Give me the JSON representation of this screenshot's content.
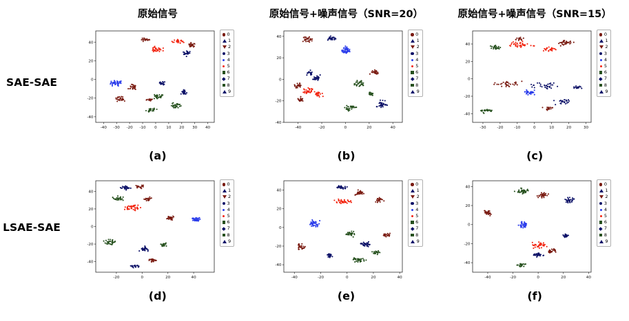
{
  "figure": {
    "col_titles": [
      "原始信号",
      "原始信号+噪声信号（SNR=20）",
      "原始信号+噪声信号（SNR=15）"
    ],
    "row_labels": [
      "SAE-SAE",
      "LSAE-SAE"
    ]
  },
  "palette": [
    "#7a1c12",
    "#0d1268",
    "#2b3deb",
    "#f2230e",
    "#27511f"
  ],
  "legend": {
    "labels": [
      "0",
      "1",
      "2",
      "3",
      "4",
      "5",
      "6",
      "7",
      "8",
      "9"
    ],
    "color_idx": [
      0,
      1,
      0,
      1,
      2,
      3,
      4,
      1,
      4,
      1
    ],
    "markers": [
      "circle",
      "triangle-up",
      "triangle-down",
      "circle",
      "dot",
      "dot",
      "square",
      "diamond",
      "square",
      "triangle-up"
    ]
  },
  "chart_data": [
    {
      "type": "scatter",
      "sublabel": "(a)",
      "xlim": [
        -46,
        45
      ],
      "ylim": [
        -46,
        52
      ],
      "xticks": [
        -40,
        -30,
        -20,
        -10,
        0,
        10,
        20,
        30,
        40
      ],
      "yticks": [
        -40,
        -20,
        0,
        20,
        40
      ],
      "clusters": [
        [
          3,
          1,
          32,
          7,
          4,
          28
        ],
        [
          3,
          17,
          41,
          7,
          3,
          26
        ],
        [
          0,
          -8,
          43,
          5,
          3,
          20
        ],
        [
          0,
          28,
          37,
          5,
          4,
          26
        ],
        [
          1,
          24,
          28,
          4,
          4,
          26
        ],
        [
          2,
          -30,
          -4,
          6,
          4,
          40
        ],
        [
          0,
          -17,
          -9,
          5,
          4,
          28
        ],
        [
          0,
          -27,
          -21,
          5,
          4,
          26
        ],
        [
          1,
          5,
          -4,
          4,
          3,
          18
        ],
        [
          4,
          3,
          -18,
          7,
          4,
          30
        ],
        [
          4,
          15,
          -28,
          6,
          4,
          30
        ],
        [
          4,
          -4,
          -33,
          6,
          3,
          26
        ],
        [
          1,
          22,
          -14,
          4,
          4,
          26
        ],
        [
          0,
          -5,
          -22,
          4,
          3,
          18
        ]
      ]
    },
    {
      "type": "scatter",
      "sublabel": "(b)",
      "xlim": [
        -52,
        48
      ],
      "ylim": [
        -40,
        45
      ],
      "xticks": [
        -40,
        -20,
        0,
        20,
        40
      ],
      "yticks": [
        -40,
        -20,
        0,
        20,
        40
      ],
      "clusters": [
        [
          2,
          0,
          27,
          5,
          5,
          45
        ],
        [
          0,
          -32,
          37,
          6,
          4,
          28
        ],
        [
          1,
          -12,
          38,
          6,
          3,
          28
        ],
        [
          1,
          -25,
          1,
          5,
          4,
          26
        ],
        [
          3,
          -31,
          -11,
          6,
          5,
          32
        ],
        [
          0,
          -40,
          -6,
          5,
          4,
          24
        ],
        [
          0,
          -38,
          -19,
          4,
          4,
          20
        ],
        [
          3,
          -22,
          -14,
          5,
          4,
          22
        ],
        [
          4,
          12,
          -4,
          6,
          5,
          32
        ],
        [
          0,
          25,
          7,
          5,
          4,
          26
        ],
        [
          4,
          22,
          -13,
          4,
          3,
          20
        ],
        [
          1,
          31,
          -23,
          6,
          5,
          34
        ],
        [
          4,
          4,
          -27,
          7,
          4,
          30
        ],
        [
          1,
          -30,
          6,
          4,
          3,
          18
        ]
      ]
    },
    {
      "type": "scatter",
      "sublabel": "(c)",
      "xlim": [
        -36,
        33
      ],
      "ylim": [
        -50,
        55
      ],
      "xticks": [
        -30,
        -20,
        -10,
        0,
        10,
        20,
        30
      ],
      "yticks": [
        -40,
        -20,
        0,
        20,
        40
      ],
      "clusters": [
        [
          3,
          -8,
          39,
          10,
          5,
          40
        ],
        [
          3,
          8,
          34,
          6,
          4,
          22
        ],
        [
          0,
          18,
          41,
          7,
          4,
          30
        ],
        [
          4,
          -23,
          36,
          5,
          4,
          26
        ],
        [
          0,
          -9,
          46,
          4,
          3,
          16
        ],
        [
          0,
          -16,
          -6,
          12,
          5,
          30
        ],
        [
          1,
          6,
          -8,
          12,
          5,
          30
        ],
        [
          2,
          -3,
          -16,
          5,
          4,
          30
        ],
        [
          1,
          16,
          -26,
          7,
          4,
          24
        ],
        [
          0,
          7,
          -34,
          5,
          3,
          18
        ],
        [
          4,
          -28,
          -37,
          5,
          4,
          26
        ],
        [
          1,
          25,
          -10,
          4,
          3,
          16
        ]
      ]
    },
    {
      "type": "scatter",
      "sublabel": "(d)",
      "xlim": [
        -36,
        56
      ],
      "ylim": [
        -52,
        52
      ],
      "xticks": [
        -20,
        0,
        20,
        40
      ],
      "yticks": [
        -40,
        -20,
        0,
        20,
        40
      ],
      "clusters": [
        [
          1,
          -13,
          44,
          6,
          3,
          30
        ],
        [
          0,
          -2,
          45,
          5,
          3,
          22
        ],
        [
          4,
          -18,
          32,
          6,
          4,
          30
        ],
        [
          0,
          4,
          31,
          4,
          3,
          20
        ],
        [
          3,
          -8,
          21,
          9,
          5,
          36
        ],
        [
          2,
          42,
          8,
          5,
          4,
          34
        ],
        [
          0,
          22,
          10,
          5,
          4,
          28
        ],
        [
          4,
          -25,
          -18,
          6,
          5,
          32
        ],
        [
          4,
          17,
          -21,
          4,
          3,
          20
        ],
        [
          1,
          2,
          -26,
          5,
          4,
          30
        ],
        [
          0,
          8,
          -38,
          5,
          3,
          24
        ],
        [
          1,
          -5,
          -45,
          5,
          3,
          22
        ]
      ]
    },
    {
      "type": "scatter",
      "sublabel": "(e)",
      "xlim": [
        -48,
        42
      ],
      "ylim": [
        -48,
        50
      ],
      "xticks": [
        -40,
        -20,
        0,
        20,
        40
      ],
      "yticks": [
        -40,
        -20,
        0,
        20,
        40
      ],
      "clusters": [
        [
          1,
          -4,
          43,
          6,
          3,
          30
        ],
        [
          0,
          9,
          37,
          5,
          4,
          26
        ],
        [
          3,
          -4,
          28,
          9,
          4,
          34
        ],
        [
          0,
          24,
          30,
          5,
          4,
          24
        ],
        [
          2,
          -25,
          4,
          5,
          5,
          38
        ],
        [
          0,
          -35,
          -21,
          5,
          4,
          28
        ],
        [
          4,
          2,
          -7,
          5,
          4,
          26
        ],
        [
          1,
          14,
          -18,
          5,
          4,
          30
        ],
        [
          0,
          30,
          -8,
          4,
          4,
          22
        ],
        [
          4,
          9,
          -35,
          7,
          4,
          32
        ],
        [
          1,
          -13,
          -30,
          4,
          3,
          20
        ],
        [
          4,
          22,
          -27,
          4,
          3,
          18
        ]
      ]
    },
    {
      "type": "scatter",
      "sublabel": "(f)",
      "xlim": [
        -52,
        42
      ],
      "ylim": [
        -50,
        46
      ],
      "xticks": [
        -40,
        -20,
        0,
        20,
        40
      ],
      "yticks": [
        -40,
        -20,
        0,
        20,
        40
      ],
      "clusters": [
        [
          4,
          -12,
          35,
          7,
          4,
          36
        ],
        [
          0,
          4,
          31,
          6,
          4,
          30
        ],
        [
          1,
          25,
          25,
          5,
          5,
          32
        ],
        [
          0,
          -40,
          12,
          4,
          4,
          28
        ],
        [
          2,
          -12,
          0,
          5,
          5,
          38
        ],
        [
          1,
          22,
          -12,
          4,
          3,
          20
        ],
        [
          3,
          1,
          -22,
          8,
          4,
          34
        ],
        [
          0,
          11,
          -28,
          5,
          3,
          24
        ],
        [
          1,
          0,
          -32,
          6,
          3,
          30
        ],
        [
          4,
          -13,
          -42,
          5,
          3,
          22
        ]
      ]
    }
  ]
}
